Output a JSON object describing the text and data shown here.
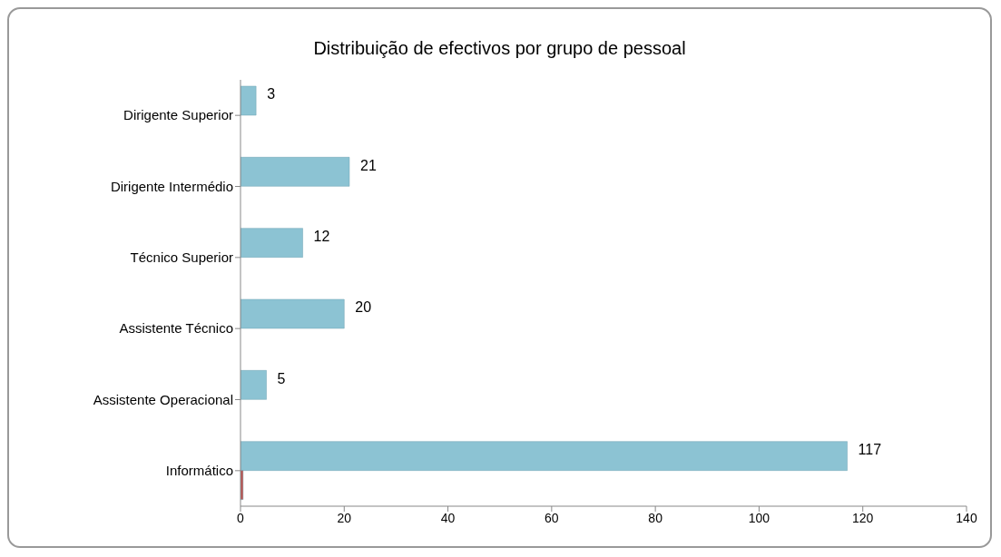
{
  "chart_data": {
    "type": "bar",
    "orientation": "horizontal",
    "title": "Distribuição de efectivos por grupo de pessoal",
    "categories": [
      "Dirigente Superior",
      "Dirigente Intermédio",
      "Técnico Superior",
      "Assistente Técnico",
      "Assistente Operacional",
      "Informático"
    ],
    "series": [
      {
        "color": "#8cc3d3",
        "values": [
          3,
          21,
          12,
          20,
          5,
          117
        ],
        "value_labels": [
          "3",
          "21",
          "12",
          "20",
          "5",
          "117"
        ]
      },
      {
        "color": "#c0504d",
        "values": [
          null,
          null,
          null,
          null,
          null,
          0.5
        ]
      }
    ],
    "xlim": [
      0,
      140
    ],
    "xticks": [
      0,
      20,
      40,
      60,
      80,
      100,
      120,
      140
    ]
  }
}
